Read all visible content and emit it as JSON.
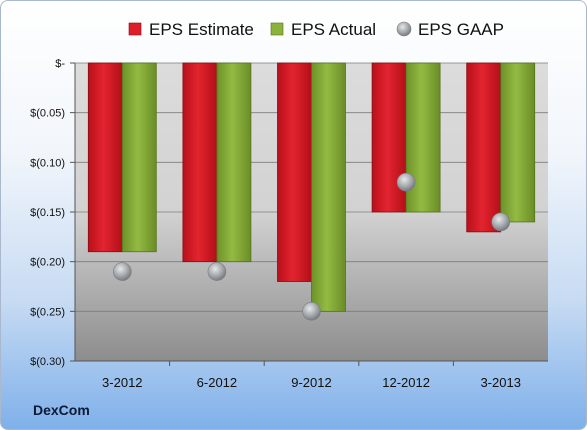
{
  "brand": "DexCom",
  "chart_data": {
    "type": "bar",
    "categories": [
      "3-2012",
      "6-2012",
      "9-2012",
      "12-2012",
      "3-2013"
    ],
    "series": [
      {
        "name": "EPS Estimate",
        "kind": "bar",
        "color": "#dd1f2a",
        "values": [
          -0.19,
          -0.2,
          -0.22,
          -0.15,
          -0.17
        ]
      },
      {
        "name": "EPS Actual",
        "kind": "bar",
        "color": "#8bb23a",
        "values": [
          -0.19,
          -0.2,
          -0.25,
          -0.15,
          -0.16
        ]
      },
      {
        "name": "EPS GAAP",
        "kind": "marker",
        "color": "#9ea3a8",
        "values": [
          -0.21,
          -0.21,
          -0.25,
          -0.12,
          -0.16
        ]
      }
    ],
    "yticks": [
      0,
      -0.05,
      -0.1,
      -0.15,
      -0.2,
      -0.25,
      -0.3
    ],
    "ytick_labels": [
      "$-",
      "$(0.05)",
      "$(0.10)",
      "$(0.15)",
      "$(0.20)",
      "$(0.25)",
      "$(0.30)"
    ],
    "ylim": [
      -0.3,
      0
    ],
    "grid": true,
    "legend": "top"
  }
}
